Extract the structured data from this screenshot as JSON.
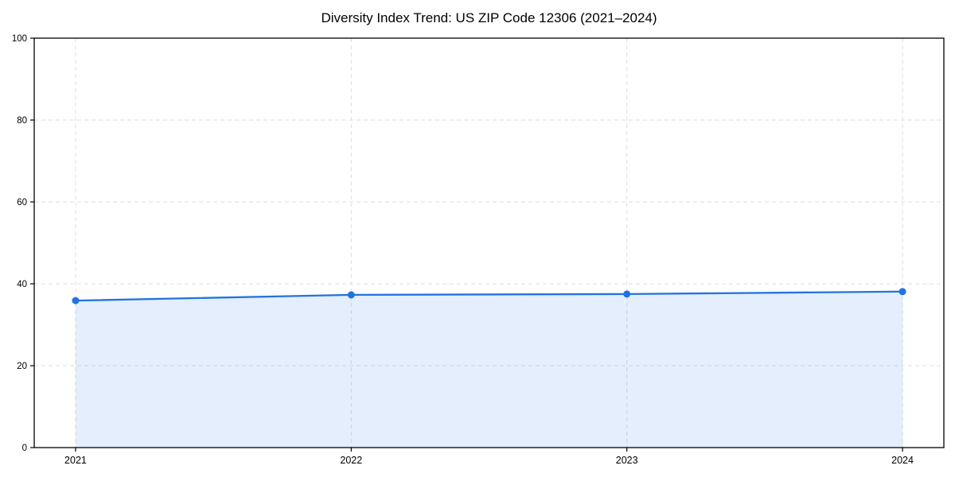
{
  "chart_data": {
    "type": "line",
    "title": "Diversity Index Trend: US ZIP Code 12306 (2021–2024)",
    "x": [
      2021,
      2022,
      2023,
      2024
    ],
    "xtick_labels": [
      "2021",
      "2022",
      "2023",
      "2024"
    ],
    "series": [
      {
        "name": "Diversity Index",
        "values": [
          35.9,
          37.3,
          37.5,
          38.1
        ]
      }
    ],
    "xlabel": "",
    "ylabel": "",
    "ylim": [
      0,
      100
    ],
    "ytick_values": [
      0,
      20,
      40,
      60,
      80,
      100
    ],
    "ytick_labels": [
      "0",
      "20",
      "40",
      "60",
      "80",
      "100"
    ],
    "x_margin_fraction": 0.05,
    "grid": "on",
    "grid_style": "dashed",
    "legend": "none",
    "area_fill": true,
    "marker": "circle",
    "colors": {
      "line": "#2173e3",
      "marker": "#2173e3",
      "fill": "rgba(33,115,227,0.12)",
      "grid": "#dedede",
      "frame": "#000000",
      "tick": "#000000",
      "text": "#000000",
      "background": "#ffffff"
    }
  }
}
